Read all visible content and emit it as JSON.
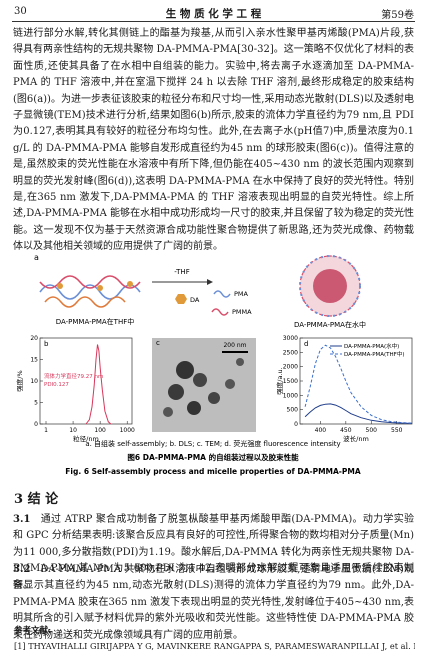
{
  "header": {
    "page": "30",
    "journal": "生 物 质 化 学 工 程",
    "volume": "第59卷"
  },
  "body": {
    "paragraph": "链进行部分水解,转化其侧链上的酯基为羧基,从而引入亲水性聚甲基丙烯酸(PMA)片段,获得具有两亲性结构的无规共聚物 DA-PMMA-PMA[30-32]。这一策略不仅优化了材料的表面性质,还使其具备了在水相中自组装的能力。实验中,将去离子水逐滴加至 DA-PMMA-PMA 的 THF 溶液中,并在室温下搅拌 24 h 以去除 THF 溶剂,最终形成稳定的胶束结构(图6(a))。为进一步表征该胶束的粒径分布和尺寸均一性,采用动态光散射(DLS)以及透射电子显微镜(TEM)技术进行分析,结果如图6(b)所示,胶束的流体力学直径约为79 nm,且 PDI 为0.127,表明其具有较好的粒径分布均匀性。此外,在去离子水(pH值7)中,质量浓度为0.1 g/L 的 DA-PMMA-PMA 能够自发形成直径约为45 nm 的球形胶束(图6(c))。值得注意的是,虽然胶束的荧光性能在水溶液中有所下降,但仍能在405~430 nm 的波长范围内观察到明显的荧光发射峰(图6(d)),这表明 DA-PMMA-PMA 在水中保持了良好的荧光特性。特别是,在365 nm 激发下,DA-PMMA-PMA 的 THF 溶液表现出明显的自荧光特性。综上所述,DA-PMMA-PMA 能够在水相中成功形成均一尺寸的胶束,并且保留了较为稳定的荧光性能。这一发现不仅为基于天然资源合成功能性聚合物提供了新思路,还为荧光成像、药物载体以及其他相关领域的应用提供了广阔的前景。"
  },
  "figure": {
    "panel_a": {
      "label": "a",
      "left_caption": "DA-PMMA-PMA在THF中",
      "arrow": "-THF",
      "parts": [
        "DA",
        "PMA",
        "PMMA"
      ],
      "right_caption": "DA-PMMA-PMA在水中"
    },
    "panel_b": {
      "type": "line",
      "label": "b",
      "x_label": "粒径/nm",
      "y_label": "强度/%",
      "log_x": true,
      "xlim": [
        0.6,
        1500
      ],
      "xticks": [
        1,
        10,
        100,
        1000
      ],
      "ylim": [
        0,
        20
      ],
      "yticks": [
        0,
        5,
        10,
        15,
        20
      ],
      "annotation": [
        "流体力学直径79.27 nm",
        "PDI0.127"
      ],
      "x": [
        30,
        40,
        50,
        60,
        70,
        80,
        90,
        100,
        120,
        150,
        200,
        250
      ],
      "series": [
        {
          "color": "#d9365a",
          "style": "solid",
          "values": [
            0,
            1,
            4,
            9,
            15,
            18.5,
            17,
            13,
            8,
            3,
            0.5,
            0
          ]
        }
      ]
    },
    "panel_c": {
      "label": "c",
      "scale_bar": "200 nm"
    },
    "panel_d": {
      "type": "line",
      "label": "d",
      "x_label": "波长/nm",
      "y_label": "强度/a.u.",
      "log_x": false,
      "xlim": [
        360,
        580
      ],
      "xticks": [
        400,
        450,
        500,
        550
      ],
      "ylim": [
        0,
        3000
      ],
      "yticks": [
        0,
        500,
        1000,
        1500,
        2000,
        2500,
        3000
      ],
      "x": [
        370,
        380,
        390,
        400,
        410,
        420,
        430,
        440,
        450,
        460,
        480,
        500,
        520,
        540,
        560,
        580
      ],
      "series": [
        {
          "name": "DA-PMMA-PMA(水中)",
          "color": "#1f3d8a",
          "style": "solid",
          "values": [
            250,
            420,
            560,
            650,
            690,
            700,
            660,
            580,
            470,
            360,
            220,
            130,
            80,
            50,
            30,
            20
          ]
        },
        {
          "name": "DA-PMMA-PMA(THF中)",
          "color": "#3b6fd1",
          "style": "dashed",
          "values": [
            600,
            1300,
            2100,
            2600,
            2750,
            2650,
            2350,
            1950,
            1500,
            1100,
            600,
            300,
            150,
            80,
            50,
            30
          ]
        }
      ]
    },
    "subcaption": "a. 自组装 self-assembly; b. DLS; c. TEM; d. 荧光强度 fluorescence intensity",
    "caption_cn": "图6 DA-PMMA-PMA 的自组装过程以及胶束性能",
    "caption_en": "Fig. 6 Self-assembly process and micelle properties of DA-PMMA-PMA"
  },
  "section": {
    "heading": "3 结 论",
    "items": [
      {
        "number": "3.1",
        "text": "通过 ATRP 聚合成功制备了脱氢枞酸基甲基丙烯酸甲酯(DA-PMMA)。动力学实验和 GPC 分析结果表明:该聚合反应具有良好的可控性,所得聚合物的数均相对分子质量(Mn)为11 000,多分散指数(PDI)为1.19。酸水解后,DA-PMMA 转化为两亲性无规共聚物 DA-PMMA-PMA,其 Mn 为5 600,PDI 为1.42,表明部分水解过程可靠且适用于后续胶束制备。"
      },
      {
        "number": "3.2",
        "text": "DA-PMMA-PMA 共聚物在水溶液中自组装形成球形胶束,透射电子显微镜(TEM)观察显示其直径约为45 nm,动态光散射(DLS)测得的流体力学直径约为79 nm。此外,DA-PMMA-PMA 胶束在365 nm 激发下表现出明显的荧光特性,发射峰位于405~430 nm,表明其所含的引入赋予材料优异的紫外光吸收和荧光性能。这些特性使 DA-PMMA-PMA 胶束在药物递送和荧光成像领域具有广阔的应用前景。"
      }
    ]
  },
  "references": {
    "heading": "参考文献:",
    "items": [
      "[1] THYAVIHALLI GIRIJAPPA Y G, MAVINKERE RANGAPPA S, PARAMESWARANPILLAI J, et al. Natural fibers as sustainable and"
    ]
  }
}
